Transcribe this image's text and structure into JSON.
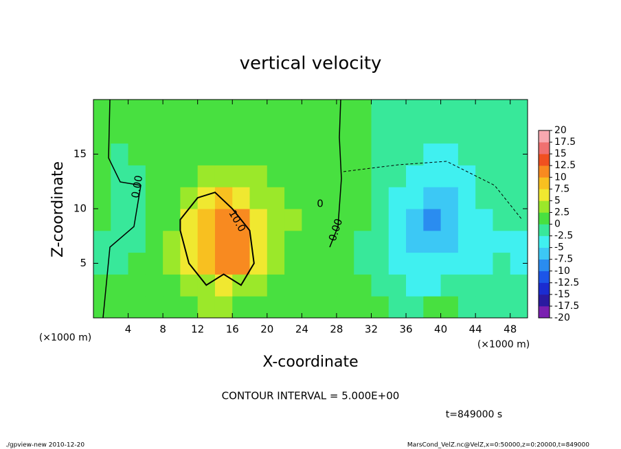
{
  "chart_data": {
    "type": "heatmap",
    "title": "vertical velocity",
    "xlabel": "X-coordinate",
    "ylabel": "Z-coordinate",
    "x_unit_left": "(×1000 m)",
    "x_unit_right": "(×1000 m)",
    "contour_interval": "CONTOUR INTERVAL = 5.000E+00",
    "time_label": "t=849000 s",
    "footer_left": "./gpview-new  2010-12-20",
    "footer_right": "MarsCond_VelZ.nc@VelZ,x=0:50000,z=0:20000,t=849000",
    "contour_labels": [
      "0.00",
      "10.0",
      "0.00",
      "0"
    ],
    "xlim": [
      0,
      50
    ],
    "ylim": [
      0,
      20
    ],
    "xticks": [
      4,
      8,
      12,
      16,
      20,
      24,
      28,
      32,
      36,
      40,
      44,
      48
    ],
    "yticks": [
      5,
      10,
      15
    ],
    "x": [
      1,
      3,
      5,
      7,
      9,
      11,
      13,
      15,
      17,
      19,
      21,
      23,
      25,
      27,
      29,
      31,
      33,
      35,
      37,
      39,
      41,
      43,
      45,
      47,
      49
    ],
    "y": [
      1,
      3,
      5,
      7,
      9,
      11,
      13,
      15,
      17,
      19
    ],
    "z": [
      [
        1,
        1,
        1,
        1,
        1.5,
        2,
        2.5,
        2.5,
        2,
        1.5,
        1,
        1,
        1,
        1,
        1,
        0.5,
        0.5,
        -0.5,
        -1,
        0.5,
        0.5,
        -0.5,
        -0.5,
        -0.5,
        -0.5
      ],
      [
        1,
        1,
        1,
        1,
        2,
        3,
        4,
        5,
        4,
        3,
        2,
        1.5,
        1,
        1,
        1,
        0.5,
        -1,
        -2,
        -3,
        -3,
        -2,
        -2,
        -2,
        -1.5,
        -1
      ],
      [
        -0.5,
        -0.5,
        1,
        1,
        2.5,
        5,
        8,
        11,
        10,
        6,
        3,
        2,
        1.5,
        1,
        1,
        -0.5,
        -2,
        -3,
        -5,
        -5,
        -4,
        -3,
        -3,
        -2,
        -3
      ],
      [
        -1,
        -1,
        -0.5,
        1,
        2.5,
        6,
        9,
        12,
        11,
        7,
        3,
        2,
        2,
        1.5,
        1,
        -0.5,
        -2,
        -4,
        -6,
        -7,
        -6,
        -4,
        -3,
        -3,
        -4
      ],
      [
        0,
        -0.5,
        -0.5,
        1,
        2,
        5,
        8,
        11,
        10,
        7,
        4,
        2.5,
        2,
        1.5,
        1,
        0,
        -1.5,
        -4,
        -6,
        -8,
        -7,
        -5,
        -3,
        -2,
        -2
      ],
      [
        1,
        -0.5,
        -0.5,
        1,
        1.5,
        3,
        5,
        8,
        7,
        4,
        3,
        2,
        1.5,
        1,
        1,
        0,
        -1,
        -3,
        -5,
        -7,
        -6,
        -4,
        -2.5,
        -1.5,
        -1
      ],
      [
        1,
        -0.5,
        -0.5,
        1,
        1,
        2,
        3,
        4,
        3.5,
        2.5,
        2,
        1.5,
        1,
        1,
        1,
        0.5,
        -1,
        -2,
        -4,
        -5,
        -5,
        -3,
        -2,
        -1,
        -0.5
      ],
      [
        1,
        -0.5,
        1,
        1,
        1,
        1.5,
        2,
        2,
        2,
        1.5,
        1,
        1,
        1,
        1,
        1,
        0.5,
        -0.5,
        -1,
        -2,
        -3,
        -3,
        -2,
        -1.5,
        -1,
        -0.5
      ],
      [
        1,
        1,
        1,
        1,
        1,
        1,
        1,
        1,
        1,
        1,
        1,
        1,
        1,
        1,
        1,
        0.5,
        -0.5,
        -0.5,
        -1,
        -1,
        -1,
        -1,
        -1,
        -0.5,
        -0.5
      ],
      [
        1,
        1,
        1,
        1,
        1,
        1,
        1,
        1,
        1,
        1,
        1,
        1,
        1,
        1,
        1,
        0.5,
        -0.5,
        -0.5,
        -0.5,
        -0.5,
        -0.5,
        -0.5,
        -0.5,
        -0.5,
        -0.5
      ]
    ],
    "levels": [
      -20,
      -17.5,
      -15,
      -12.5,
      -10,
      -7.5,
      -5,
      -2.5,
      0,
      2.5,
      5,
      7.5,
      10,
      12.5,
      15,
      17.5,
      20
    ],
    "colors": [
      "#7a1fb0",
      "#2a1aa0",
      "#1b2cd0",
      "#1c55e8",
      "#2a8cf0",
      "#3cc8f5",
      "#40f0f0",
      "#38e89a",
      "#48e040",
      "#9be82a",
      "#f0e830",
      "#f8c020",
      "#f88a20",
      "#f05020",
      "#f07070",
      "#f8a8b0"
    ]
  }
}
